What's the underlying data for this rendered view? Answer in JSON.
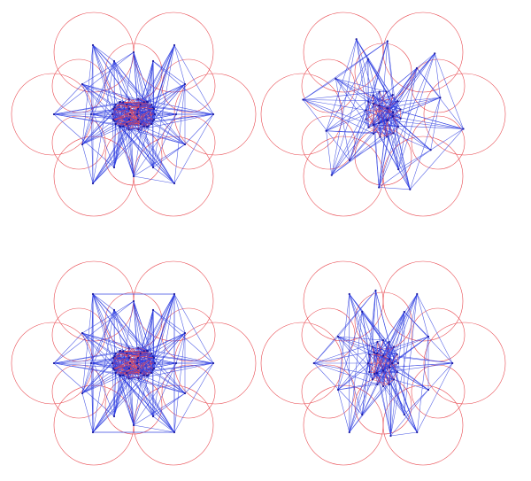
{
  "figure": {
    "colors": {
      "background": "#ffffff",
      "circle": "#e8484f",
      "edge": "#2b3be0",
      "node": "#1a1aa0"
    },
    "panels": [
      {
        "name": "panel-top-left",
        "variant": "grid-symmetric"
      },
      {
        "name": "panel-top-right",
        "variant": "star-rotated"
      },
      {
        "name": "panel-bottom-left",
        "variant": "grid-framed"
      },
      {
        "name": "panel-bottom-right",
        "variant": "star-narrow"
      }
    ]
  }
}
